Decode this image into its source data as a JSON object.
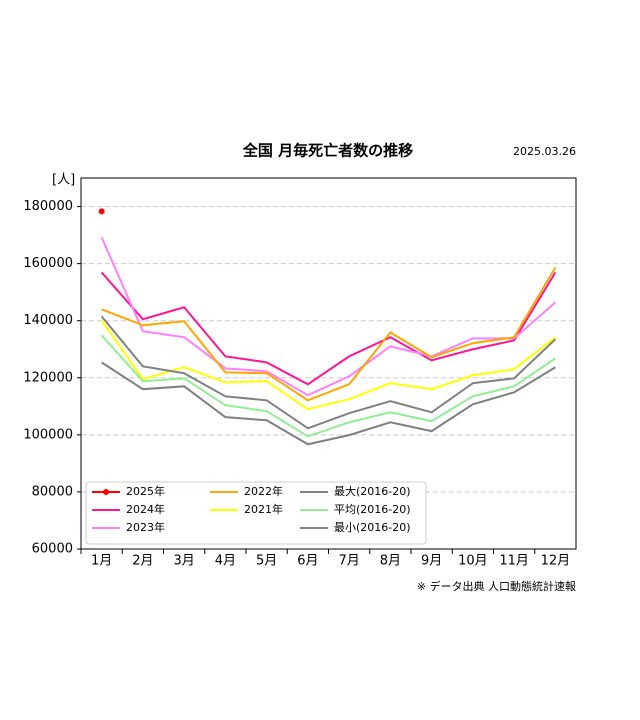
{
  "chart_data": {
    "type": "line",
    "title": "全国 月毎死亡者数の推移",
    "date": "2025.03.26",
    "y_unit": "[人]",
    "note": "※ データ出典 人口動態統計速報",
    "categories": [
      "1月",
      "2月",
      "3月",
      "4月",
      "5月",
      "6月",
      "7月",
      "8月",
      "9月",
      "10月",
      "11月",
      "12月"
    ],
    "ylim": [
      60000,
      190000
    ],
    "yticks": [
      60000,
      80000,
      100000,
      120000,
      140000,
      160000,
      180000
    ],
    "grid": true,
    "legend": "lower left",
    "series": [
      {
        "name": "2025年",
        "color": "#ff0000",
        "marker": "o",
        "values": [
          178300,
          null,
          null,
          null,
          null,
          null,
          null,
          null,
          null,
          null,
          null,
          null
        ]
      },
      {
        "name": "2024年",
        "color": "#ff1493",
        "values": [
          156900,
          140500,
          144700,
          127500,
          125400,
          117700,
          127500,
          134200,
          126100,
          130000,
          133100,
          156900
        ]
      },
      {
        "name": "2023年",
        "color": "#ff80ff",
        "values": [
          169200,
          136300,
          134200,
          123300,
          122300,
          113900,
          120500,
          131000,
          127500,
          133800,
          133800,
          146400
        ]
      },
      {
        "name": "2022年",
        "color": "#ffa500",
        "values": [
          144000,
          138400,
          139800,
          121900,
          121600,
          112100,
          117700,
          135900,
          127200,
          132100,
          134200,
          158700
        ]
      },
      {
        "name": "2021年",
        "color": "#ffff00",
        "values": [
          140100,
          119500,
          123700,
          118400,
          118800,
          109000,
          112500,
          118100,
          116000,
          120900,
          123000,
          134200
        ]
      },
      {
        "name": "最大(2016-20)",
        "color": "#808080",
        "values": [
          141500,
          124000,
          121600,
          113500,
          112100,
          102300,
          107600,
          111800,
          107900,
          118100,
          119800,
          133500
        ]
      },
      {
        "name": "平均(2016-20)",
        "color": "#90ee90",
        "values": [
          134900,
          118800,
          119800,
          110400,
          108300,
          99500,
          104400,
          107900,
          104800,
          113500,
          117000,
          126800
        ]
      },
      {
        "name": "最小(2016-20)",
        "color": "#808080",
        "values": [
          125400,
          116000,
          117000,
          106200,
          105100,
          96700,
          99900,
          104400,
          101300,
          110700,
          114900,
          123700
        ]
      }
    ]
  }
}
